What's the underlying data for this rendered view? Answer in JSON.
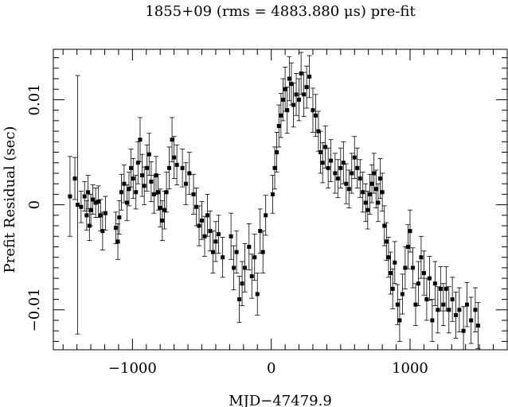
{
  "chart_data": {
    "type": "scatter",
    "title": "1855+09 (rms = 4883.880 μs) pre-fit",
    "xlabel": "MJD−47479.9",
    "ylabel": "Prefit Residual (sec)",
    "xlim": [
      -1570,
      1700
    ],
    "ylim": [
      -0.0138,
      0.0148
    ],
    "x_ticks": [
      {
        "value": -1000,
        "label": "−1000"
      },
      {
        "value": 0,
        "label": "0"
      },
      {
        "value": 1000,
        "label": "1000"
      }
    ],
    "y_ticks": [
      {
        "value": 0.01,
        "label": "0.01"
      },
      {
        "value": 0,
        "label": "0"
      },
      {
        "value": -0.01,
        "label": "−0.01"
      }
    ],
    "x_minor_step": 100,
    "y_minor_step": 0.001,
    "error_bars": true,
    "grid": false,
    "points": [
      {
        "x": -1450,
        "y": 0.0008,
        "err": 0.0038
      },
      {
        "x": -1415,
        "y": 0.0025,
        "err": 0.002
      },
      {
        "x": -1395,
        "y": 0.0,
        "err": 0.0123
      },
      {
        "x": -1370,
        "y": -0.0002,
        "err": 0.0015
      },
      {
        "x": -1345,
        "y": 0.0008,
        "err": 0.0014
      },
      {
        "x": -1330,
        "y": -0.001,
        "err": 0.0014
      },
      {
        "x": -1320,
        "y": 0.0012,
        "err": 0.0016
      },
      {
        "x": -1310,
        "y": -0.002,
        "err": 0.0014
      },
      {
        "x": -1300,
        "y": -0.0005,
        "err": 0.0015
      },
      {
        "x": -1285,
        "y": 0.0005,
        "err": 0.0014
      },
      {
        "x": -1265,
        "y": 0.0002,
        "err": 0.0014
      },
      {
        "x": -1245,
        "y": 0.0003,
        "err": 0.0015
      },
      {
        "x": -1230,
        "y": -0.001,
        "err": 0.0015
      },
      {
        "x": -1215,
        "y": -0.0025,
        "err": 0.0018
      },
      {
        "x": -1195,
        "y": -0.0008,
        "err": 0.0016
      },
      {
        "x": -1120,
        "y": -0.0022,
        "err": 0.0015
      },
      {
        "x": -1105,
        "y": -0.0035,
        "err": 0.0017
      },
      {
        "x": -1095,
        "y": -0.0012,
        "err": 0.0016
      },
      {
        "x": -1080,
        "y": 0.0012,
        "err": 0.0017
      },
      {
        "x": -1060,
        "y": 0.002,
        "err": 0.0018
      },
      {
        "x": -1040,
        "y": 0.0002,
        "err": 0.0017
      },
      {
        "x": -1025,
        "y": 0.0015,
        "err": 0.0016
      },
      {
        "x": -1010,
        "y": 0.0035,
        "err": 0.0018
      },
      {
        "x": -995,
        "y": 0.0025,
        "err": 0.0019
      },
      {
        "x": -975,
        "y": 0.0012,
        "err": 0.0016
      },
      {
        "x": -960,
        "y": 0.004,
        "err": 0.002
      },
      {
        "x": -945,
        "y": 0.0062,
        "err": 0.0021
      },
      {
        "x": -930,
        "y": 0.0028,
        "err": 0.002
      },
      {
        "x": -915,
        "y": 0.0018,
        "err": 0.0018
      },
      {
        "x": -895,
        "y": 0.0035,
        "err": 0.0022
      },
      {
        "x": -880,
        "y": 0.0048,
        "err": 0.002
      },
      {
        "x": -865,
        "y": 0.0022,
        "err": 0.0019
      },
      {
        "x": -845,
        "y": 0.001,
        "err": 0.0018
      },
      {
        "x": -830,
        "y": 0.0028,
        "err": 0.0018
      },
      {
        "x": -815,
        "y": 0.0012,
        "err": 0.0017
      },
      {
        "x": -800,
        "y": -0.0003,
        "err": 0.0018
      },
      {
        "x": -785,
        "y": -0.0015,
        "err": 0.0019
      },
      {
        "x": -770,
        "y": -0.0005,
        "err": 0.0018
      },
      {
        "x": -755,
        "y": 0.0012,
        "err": 0.0019
      },
      {
        "x": -735,
        "y": 0.0035,
        "err": 0.002
      },
      {
        "x": -715,
        "y": 0.0062,
        "err": 0.0021
      },
      {
        "x": -700,
        "y": 0.0045,
        "err": 0.002
      },
      {
        "x": -680,
        "y": 0.0038,
        "err": 0.0019
      },
      {
        "x": -640,
        "y": 0.0035,
        "err": 0.0018
      },
      {
        "x": -615,
        "y": 0.002,
        "err": 0.002
      },
      {
        "x": -590,
        "y": 0.003,
        "err": 0.002
      },
      {
        "x": -560,
        "y": 0.001,
        "err": 0.0019
      },
      {
        "x": -540,
        "y": -0.0002,
        "err": 0.0018
      },
      {
        "x": -520,
        "y": -0.002,
        "err": 0.0019
      },
      {
        "x": -500,
        "y": -0.0015,
        "err": 0.0018
      },
      {
        "x": -480,
        "y": -0.003,
        "err": 0.0019
      },
      {
        "x": -460,
        "y": -0.001,
        "err": 0.002
      },
      {
        "x": -440,
        "y": -0.0025,
        "err": 0.0019
      },
      {
        "x": -420,
        "y": -0.0045,
        "err": 0.002
      },
      {
        "x": -400,
        "y": -0.0035,
        "err": 0.0019
      },
      {
        "x": -380,
        "y": -0.0028,
        "err": 0.0018
      },
      {
        "x": -350,
        "y": -0.005,
        "err": 0.0019
      },
      {
        "x": -290,
        "y": -0.003,
        "err": 0.0022
      },
      {
        "x": -270,
        "y": -0.006,
        "err": 0.0021
      },
      {
        "x": -250,
        "y": -0.0045,
        "err": 0.002
      },
      {
        "x": -230,
        "y": -0.009,
        "err": 0.0022
      },
      {
        "x": -210,
        "y": -0.0075,
        "err": 0.0021
      },
      {
        "x": -190,
        "y": -0.006,
        "err": 0.0023
      },
      {
        "x": -160,
        "y": -0.004,
        "err": 0.0022
      },
      {
        "x": -140,
        "y": -0.0068,
        "err": 0.0021
      },
      {
        "x": -120,
        "y": -0.005,
        "err": 0.0022
      },
      {
        "x": -100,
        "y": -0.0085,
        "err": 0.002
      },
      {
        "x": -80,
        "y": -0.0025,
        "err": 0.0021
      },
      {
        "x": -60,
        "y": -0.0045,
        "err": 0.002
      },
      {
        "x": -40,
        "y": -0.001,
        "err": 0.0019
      },
      {
        "x": 10,
        "y": 0.001,
        "err": 0.0018
      },
      {
        "x": 25,
        "y": 0.0035,
        "err": 0.002
      },
      {
        "x": 40,
        "y": 0.005,
        "err": 0.0019
      },
      {
        "x": 55,
        "y": 0.0075,
        "err": 0.002
      },
      {
        "x": 70,
        "y": 0.0085,
        "err": 0.0021
      },
      {
        "x": 85,
        "y": 0.01,
        "err": 0.002
      },
      {
        "x": 100,
        "y": 0.011,
        "err": 0.0021
      },
      {
        "x": 115,
        "y": 0.009,
        "err": 0.0022
      },
      {
        "x": 130,
        "y": 0.012,
        "err": 0.0021
      },
      {
        "x": 145,
        "y": 0.0115,
        "err": 0.002
      },
      {
        "x": 160,
        "y": 0.0095,
        "err": 0.0021
      },
      {
        "x": 180,
        "y": 0.0105,
        "err": 0.002
      },
      {
        "x": 200,
        "y": 0.01,
        "err": 0.002
      },
      {
        "x": 215,
        "y": 0.0125,
        "err": 0.002
      },
      {
        "x": 235,
        "y": 0.0105,
        "err": 0.0021
      },
      {
        "x": 255,
        "y": 0.0112,
        "err": 0.002
      },
      {
        "x": 275,
        "y": 0.0122,
        "err": 0.002
      },
      {
        "x": 300,
        "y": 0.009,
        "err": 0.0021
      },
      {
        "x": 320,
        "y": 0.0085,
        "err": 0.002
      },
      {
        "x": 340,
        "y": 0.007,
        "err": 0.0019
      },
      {
        "x": 355,
        "y": 0.005,
        "err": 0.002
      },
      {
        "x": 370,
        "y": 0.004,
        "err": 0.0019
      },
      {
        "x": 390,
        "y": 0.0055,
        "err": 0.002
      },
      {
        "x": 410,
        "y": 0.0035,
        "err": 0.0019
      },
      {
        "x": 430,
        "y": 0.0042,
        "err": 0.002
      },
      {
        "x": 460,
        "y": 0.003,
        "err": 0.0019
      },
      {
        "x": 480,
        "y": 0.0025,
        "err": 0.0018
      },
      {
        "x": 500,
        "y": 0.0035,
        "err": 0.0019
      },
      {
        "x": 520,
        "y": 0.004,
        "err": 0.002
      },
      {
        "x": 540,
        "y": 0.002,
        "err": 0.0019
      },
      {
        "x": 560,
        "y": 0.0015,
        "err": 0.0018
      },
      {
        "x": 580,
        "y": 0.003,
        "err": 0.0019
      },
      {
        "x": 600,
        "y": 0.0045,
        "err": 0.002
      },
      {
        "x": 620,
        "y": 0.0035,
        "err": 0.0019
      },
      {
        "x": 640,
        "y": 0.0025,
        "err": 0.0018
      },
      {
        "x": 660,
        "y": 0.0012,
        "err": 0.0019
      },
      {
        "x": 680,
        "y": 0.0002,
        "err": 0.0018
      },
      {
        "x": 695,
        "y": -0.0005,
        "err": 0.0018
      },
      {
        "x": 710,
        "y": 0.001,
        "err": 0.0019
      },
      {
        "x": 725,
        "y": 0.002,
        "err": 0.0018
      },
      {
        "x": 740,
        "y": 0.003,
        "err": 0.0019
      },
      {
        "x": 755,
        "y": 0.0015,
        "err": 0.0018
      },
      {
        "x": 770,
        "y": 0.0002,
        "err": 0.0018
      },
      {
        "x": 785,
        "y": 0.0025,
        "err": 0.0019
      },
      {
        "x": 800,
        "y": 0.0012,
        "err": 0.0018
      },
      {
        "x": 815,
        "y": -0.002,
        "err": 0.0019
      },
      {
        "x": 830,
        "y": -0.0035,
        "err": 0.0018
      },
      {
        "x": 845,
        "y": -0.005,
        "err": 0.0019
      },
      {
        "x": 860,
        "y": -0.0065,
        "err": 0.002
      },
      {
        "x": 875,
        "y": -0.008,
        "err": 0.0019
      },
      {
        "x": 890,
        "y": -0.0055,
        "err": 0.002
      },
      {
        "x": 910,
        "y": -0.0095,
        "err": 0.0019
      },
      {
        "x": 925,
        "y": -0.011,
        "err": 0.002
      },
      {
        "x": 945,
        "y": -0.0085,
        "err": 0.0019
      },
      {
        "x": 965,
        "y": -0.006,
        "err": 0.002
      },
      {
        "x": 985,
        "y": -0.004,
        "err": 0.0021
      },
      {
        "x": 1000,
        "y": -0.0025,
        "err": 0.002
      },
      {
        "x": 1020,
        "y": -0.006,
        "err": 0.0019
      },
      {
        "x": 1040,
        "y": -0.0095,
        "err": 0.002
      },
      {
        "x": 1060,
        "y": -0.0075,
        "err": 0.0021
      },
      {
        "x": 1080,
        "y": -0.005,
        "err": 0.002
      },
      {
        "x": 1100,
        "y": -0.0065,
        "err": 0.0021
      },
      {
        "x": 1120,
        "y": -0.009,
        "err": 0.002
      },
      {
        "x": 1140,
        "y": -0.007,
        "err": 0.0021
      },
      {
        "x": 1160,
        "y": -0.011,
        "err": 0.002
      },
      {
        "x": 1180,
        "y": -0.0075,
        "err": 0.0021
      },
      {
        "x": 1200,
        "y": -0.01,
        "err": 0.0022
      },
      {
        "x": 1220,
        "y": -0.008,
        "err": 0.0021
      },
      {
        "x": 1240,
        "y": -0.0095,
        "err": 0.002
      },
      {
        "x": 1260,
        "y": -0.008,
        "err": 0.0021
      },
      {
        "x": 1280,
        "y": -0.01,
        "err": 0.0022
      },
      {
        "x": 1305,
        "y": -0.009,
        "err": 0.0021
      },
      {
        "x": 1330,
        "y": -0.0105,
        "err": 0.0022
      },
      {
        "x": 1355,
        "y": -0.01,
        "err": 0.0021
      },
      {
        "x": 1385,
        "y": -0.012,
        "err": 0.0023
      },
      {
        "x": 1410,
        "y": -0.0095,
        "err": 0.0021
      },
      {
        "x": 1440,
        "y": -0.011,
        "err": 0.0022
      },
      {
        "x": 1470,
        "y": -0.01,
        "err": 0.0021
      },
      {
        "x": 1490,
        "y": -0.0115,
        "err": 0.0022
      }
    ]
  }
}
